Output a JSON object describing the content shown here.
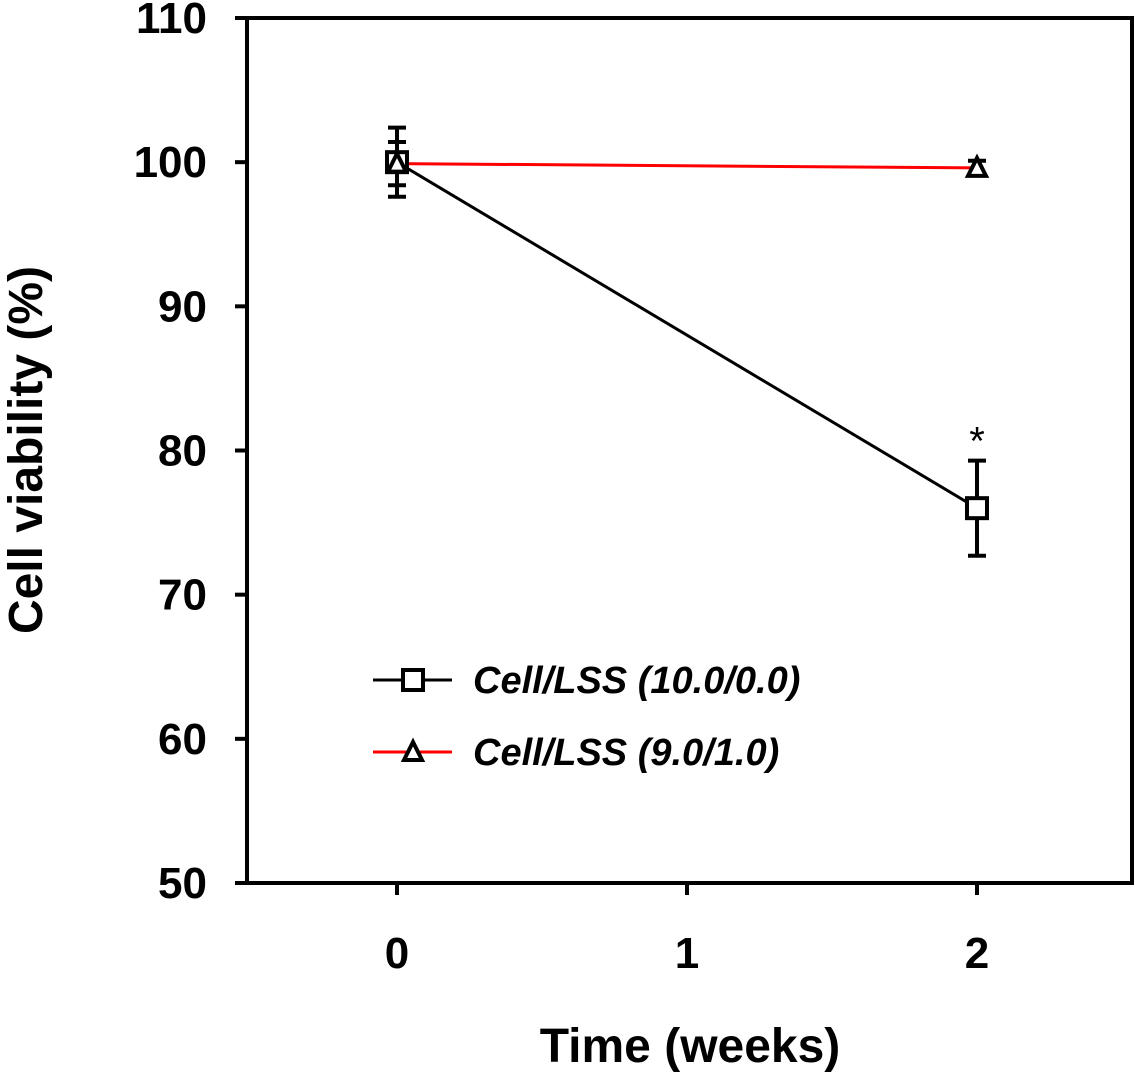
{
  "chart_data": {
    "type": "line",
    "title": "",
    "xlabel": "Time (weeks)",
    "ylabel": "Cell viability (%)",
    "xlim": [
      -0.5,
      2.53
    ],
    "ylim": [
      50,
      110
    ],
    "xticks": [
      0,
      1,
      2
    ],
    "yticks": [
      50,
      60,
      70,
      80,
      90,
      100,
      110
    ],
    "grid": false,
    "legend_position": "lower-left",
    "series": [
      {
        "name": "Cell/LSS (10.0/0.0)",
        "color": "#000000",
        "marker": "square",
        "x": [
          0,
          2
        ],
        "y": [
          100.0,
          76.0
        ],
        "error": [
          2.4,
          3.3
        ]
      },
      {
        "name": "Cell/LSS (9.0/1.0)",
        "color": "#ff0000",
        "marker": "triangle",
        "x": [
          0,
          2
        ],
        "y": [
          99.9,
          99.6
        ],
        "error": [
          1.5,
          0.5
        ]
      }
    ],
    "annotations": [
      {
        "text": "*",
        "x": 2,
        "series": 0
      }
    ]
  }
}
